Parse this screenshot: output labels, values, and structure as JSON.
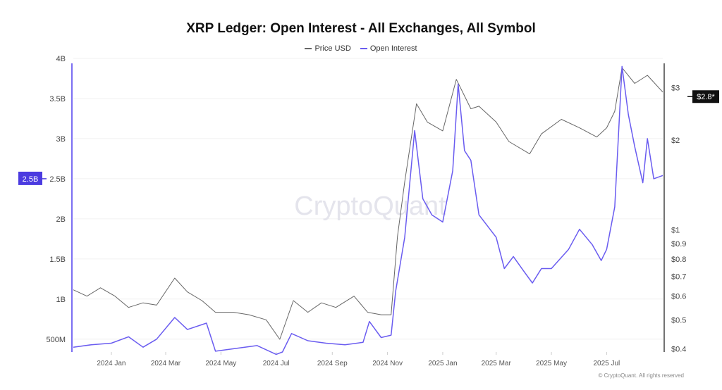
{
  "chart_data": {
    "type": "line",
    "title": "XRP Ledger: Open Interest - All Exchanges, All Symbol",
    "legend_position": "top",
    "grid": true,
    "watermark": "CryptoQuant",
    "footer": "© CryptoQuant. All rights reserved",
    "x_ticks": [
      {
        "date": "2024-01-01",
        "label": "2024 Jan"
      },
      {
        "date": "2024-03-01",
        "label": "2024 Mar"
      },
      {
        "date": "2024-05-01",
        "label": "2024 May"
      },
      {
        "date": "2024-07-01",
        "label": "2024 Jul"
      },
      {
        "date": "2024-09-01",
        "label": "2024 Sep"
      },
      {
        "date": "2024-11-01",
        "label": "2024 Nov"
      },
      {
        "date": "2025-01-01",
        "label": "2025 Jan"
      },
      {
        "date": "2025-03-01",
        "label": "2025 Mar"
      },
      {
        "date": "2025-05-01",
        "label": "2025 May"
      },
      {
        "date": "2025-07-01",
        "label": "2025 Jul"
      }
    ],
    "x_range": [
      "2023-11-20",
      "2025-09-01"
    ],
    "y_left": {
      "scale": "linear",
      "range": [
        0.34,
        4.0
      ],
      "unit": "B",
      "ticks": [
        {
          "v": 0.5,
          "label": "500M"
        },
        {
          "v": 1,
          "label": "1B"
        },
        {
          "v": 1.5,
          "label": "1.5B"
        },
        {
          "v": 2,
          "label": "2B"
        },
        {
          "v": 2.5,
          "label": "2.5B"
        },
        {
          "v": 3,
          "label": "3B"
        },
        {
          "v": 3.5,
          "label": "3.5B"
        },
        {
          "v": 4,
          "label": "4B"
        }
      ],
      "highlight": {
        "v": 2.5,
        "label": "2.5B"
      }
    },
    "y_right": {
      "scale": "log",
      "range": [
        0.39,
        3.76
      ],
      "ticks": [
        {
          "v": 0.4,
          "label": "$0.4"
        },
        {
          "v": 0.5,
          "label": "$0.5"
        },
        {
          "v": 0.6,
          "label": "$0.6"
        },
        {
          "v": 0.7,
          "label": "$0.7"
        },
        {
          "v": 0.8,
          "label": "$0.8"
        },
        {
          "v": 0.9,
          "label": "$0.9"
        },
        {
          "v": 1,
          "label": "$1"
        },
        {
          "v": 2,
          "label": "$2"
        },
        {
          "v": 3,
          "label": "$3"
        }
      ],
      "highlight": {
        "v": 2.8,
        "label": "$2.8*"
      }
    },
    "series": [
      {
        "name": "Price USD",
        "axis": "right",
        "color": "#666666",
        "points": [
          [
            "2023-11-20",
            0.63
          ],
          [
            "2023-12-05",
            0.6
          ],
          [
            "2023-12-20",
            0.64
          ],
          [
            "2024-01-05",
            0.6
          ],
          [
            "2024-01-20",
            0.55
          ],
          [
            "2024-02-05",
            0.57
          ],
          [
            "2024-02-20",
            0.56
          ],
          [
            "2024-03-11",
            0.69
          ],
          [
            "2024-03-25",
            0.62
          ],
          [
            "2024-04-10",
            0.58
          ],
          [
            "2024-04-25",
            0.53
          ],
          [
            "2024-05-15",
            0.53
          ],
          [
            "2024-06-01",
            0.52
          ],
          [
            "2024-06-20",
            0.5
          ],
          [
            "2024-07-05",
            0.43
          ],
          [
            "2024-07-20",
            0.58
          ],
          [
            "2024-08-05",
            0.53
          ],
          [
            "2024-08-20",
            0.57
          ],
          [
            "2024-09-05",
            0.55
          ],
          [
            "2024-09-25",
            0.6
          ],
          [
            "2024-10-10",
            0.53
          ],
          [
            "2024-10-25",
            0.52
          ],
          [
            "2024-11-05",
            0.52
          ],
          [
            "2024-11-12",
            0.95
          ],
          [
            "2024-11-20",
            1.45
          ],
          [
            "2024-12-03",
            2.65
          ],
          [
            "2024-12-15",
            2.3
          ],
          [
            "2025-01-01",
            2.15
          ],
          [
            "2025-01-16",
            3.2
          ],
          [
            "2025-02-01",
            2.55
          ],
          [
            "2025-02-10",
            2.6
          ],
          [
            "2025-03-01",
            2.3
          ],
          [
            "2025-03-15",
            1.98
          ],
          [
            "2025-04-07",
            1.8
          ],
          [
            "2025-04-20",
            2.1
          ],
          [
            "2025-05-12",
            2.35
          ],
          [
            "2025-06-01",
            2.2
          ],
          [
            "2025-06-20",
            2.05
          ],
          [
            "2025-07-01",
            2.2
          ],
          [
            "2025-07-10",
            2.5
          ],
          [
            "2025-07-18",
            3.5
          ],
          [
            "2025-08-01",
            3.1
          ],
          [
            "2025-08-15",
            3.3
          ],
          [
            "2025-09-01",
            2.9
          ]
        ]
      },
      {
        "name": "Open Interest",
        "axis": "left",
        "color": "#6A5CF0",
        "points": [
          [
            "2023-11-20",
            0.4
          ],
          [
            "2023-12-10",
            0.43
          ],
          [
            "2024-01-01",
            0.45
          ],
          [
            "2024-01-20",
            0.53
          ],
          [
            "2024-02-05",
            0.4
          ],
          [
            "2024-02-20",
            0.5
          ],
          [
            "2024-03-11",
            0.77
          ],
          [
            "2024-03-25",
            0.62
          ],
          [
            "2024-04-15",
            0.7
          ],
          [
            "2024-04-25",
            0.35
          ],
          [
            "2024-05-15",
            0.38
          ],
          [
            "2024-06-10",
            0.42
          ],
          [
            "2024-07-01",
            0.31
          ],
          [
            "2024-07-08",
            0.34
          ],
          [
            "2024-07-18",
            0.57
          ],
          [
            "2024-08-05",
            0.48
          ],
          [
            "2024-08-25",
            0.45
          ],
          [
            "2024-09-15",
            0.43
          ],
          [
            "2024-10-05",
            0.46
          ],
          [
            "2024-10-12",
            0.72
          ],
          [
            "2024-10-25",
            0.52
          ],
          [
            "2024-11-05",
            0.55
          ],
          [
            "2024-11-10",
            1.1
          ],
          [
            "2024-11-20",
            1.77
          ],
          [
            "2024-12-01",
            3.1
          ],
          [
            "2024-12-10",
            2.25
          ],
          [
            "2024-12-20",
            2.05
          ],
          [
            "2025-01-01",
            1.96
          ],
          [
            "2025-01-12",
            2.6
          ],
          [
            "2025-01-18",
            3.68
          ],
          [
            "2025-01-25",
            2.85
          ],
          [
            "2025-02-01",
            2.73
          ],
          [
            "2025-02-10",
            2.05
          ],
          [
            "2025-03-01",
            1.77
          ],
          [
            "2025-03-10",
            1.38
          ],
          [
            "2025-03-20",
            1.53
          ],
          [
            "2025-04-01",
            1.34
          ],
          [
            "2025-04-10",
            1.2
          ],
          [
            "2025-04-20",
            1.38
          ],
          [
            "2025-05-01",
            1.38
          ],
          [
            "2025-05-20",
            1.62
          ],
          [
            "2025-06-01",
            1.87
          ],
          [
            "2025-06-15",
            1.68
          ],
          [
            "2025-06-25",
            1.48
          ],
          [
            "2025-07-01",
            1.62
          ],
          [
            "2025-07-10",
            2.15
          ],
          [
            "2025-07-18",
            3.9
          ],
          [
            "2025-07-25",
            3.3
          ],
          [
            "2025-08-01",
            2.9
          ],
          [
            "2025-08-10",
            2.45
          ],
          [
            "2025-08-15",
            3.0
          ],
          [
            "2025-08-22",
            2.5
          ],
          [
            "2025-09-01",
            2.54
          ]
        ]
      }
    ]
  }
}
